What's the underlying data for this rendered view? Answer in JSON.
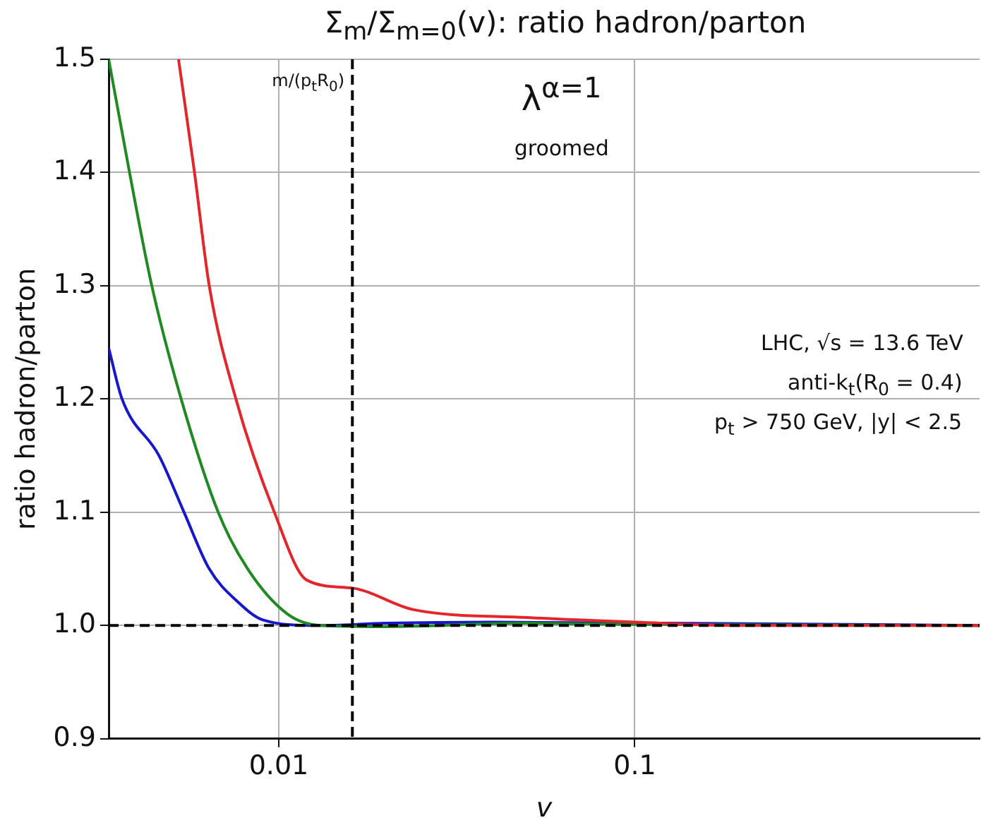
{
  "chart_data": {
    "type": "line",
    "title": "Σ$_{m}$/Σ$_{m=0}$(v): ratio hadron/parton",
    "xlabel": "v",
    "ylabel": "ratio hadron/parton",
    "log": "x",
    "grid": true,
    "legend": false,
    "marker": "none",
    "line_style": "solid",
    "xlim": [
      0.00333,
      0.93
    ],
    "xticks": [
      0.01,
      0.1
    ],
    "ylim": [
      0.9,
      1.5
    ],
    "yticks": [
      0.9,
      {
        "value": 1.0,
        "label": "1.0"
      },
      1.1,
      1.2,
      1.3,
      1.4,
      1.5
    ],
    "series": [
      {
        "color": "#e4262a",
        "x": [
          0.00523,
          0.0058,
          0.00638,
          0.00758,
          0.00972,
          0.012,
          0.0161,
          0.0239,
          0.05,
          0.1,
          0.2,
          0.93
        ],
        "values": [
          1.5,
          1.4,
          1.3,
          1.2,
          1.1,
          1.04,
          1.033,
          1.014,
          1.007,
          1.003,
          1.0,
          1.0
        ]
      },
      {
        "color": "#1f8a22",
        "x": [
          0.00333,
          0.00381,
          0.0044,
          0.00532,
          0.00676,
          0.00818,
          0.0106,
          0.0132,
          0.02,
          0.05,
          0.1,
          0.93
        ],
        "values": [
          1.5,
          1.4,
          1.3,
          1.2,
          1.1,
          1.05,
          1.01,
          1.0,
          0.999,
          1.002,
          1.001,
          1.0
        ]
      },
      {
        "color": "#1717cc",
        "x": [
          0.00333,
          0.00363,
          0.00461,
          0.00542,
          0.00638,
          0.00773,
          0.00902,
          0.0129,
          0.02,
          0.04,
          0.93
        ],
        "values": [
          1.245,
          1.2,
          1.15,
          1.1,
          1.05,
          1.02,
          1.005,
          1.0,
          1.002,
          1.003,
          1.0
        ]
      }
    ],
    "ref_lines": [
      {
        "axis": "y",
        "value": 1.0,
        "color": "#000000",
        "line_style": "dashed"
      },
      {
        "axis": "x",
        "value": 0.0161,
        "label": "m/(p$_{t}$R$_{0}$)",
        "color": "#000000",
        "line_style": "dashed"
      }
    ],
    "annotations": [
      "λ$^{α=1}$",
      "groomed",
      "LHC, √s = 13.6 TeV",
      "anti-k$_{t}$(R$_{0}$ = 0.4)",
      "p$_{t}$ > 750 GeV, |y| < 2.5"
    ]
  }
}
